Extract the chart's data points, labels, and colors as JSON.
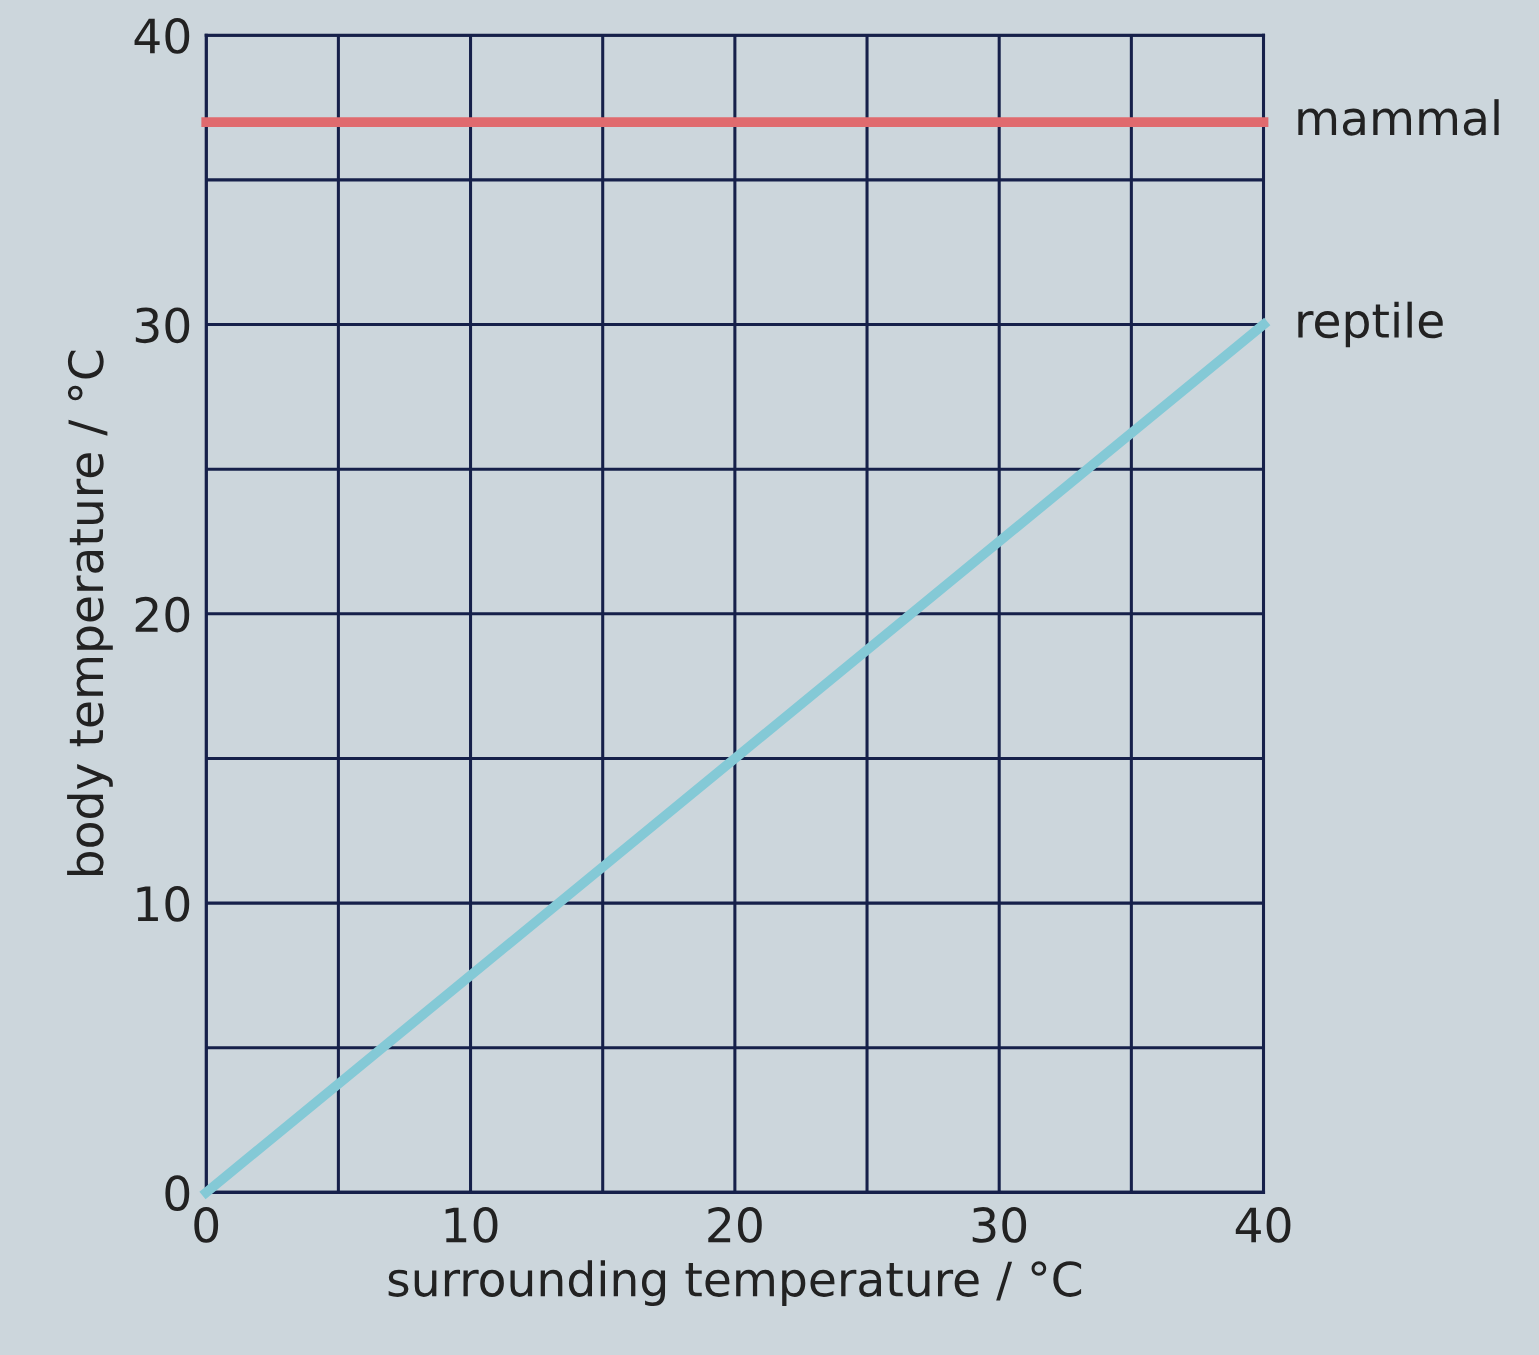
{
  "chart_data": {
    "type": "line",
    "xlabel": "surrounding temperature / °C",
    "ylabel": "body temperature / °C",
    "x": [
      0,
      40
    ],
    "series": [
      {
        "name": "mammal",
        "color": "#e06a6e",
        "values": [
          37,
          37
        ]
      },
      {
        "name": "reptile",
        "color": "#84c9d6",
        "values": [
          0,
          30
        ]
      }
    ],
    "xlim": [
      0,
      40
    ],
    "ylim": [
      0,
      40
    ],
    "xticks": [
      0,
      {
        "value": 5,
        "label": null
      },
      10,
      {
        "value": 15,
        "label": null
      },
      20,
      {
        "value": 25,
        "label": null
      },
      30,
      {
        "value": 35,
        "label": null
      },
      40
    ],
    "yticks": [
      0,
      {
        "value": 5,
        "label": null
      },
      10,
      {
        "value": 15,
        "label": null
      },
      20,
      {
        "value": 25,
        "label": null
      },
      30,
      {
        "value": 35,
        "label": null
      },
      40
    ],
    "grid": true,
    "legend": false,
    "marker": "none",
    "line_style": "solid"
  }
}
